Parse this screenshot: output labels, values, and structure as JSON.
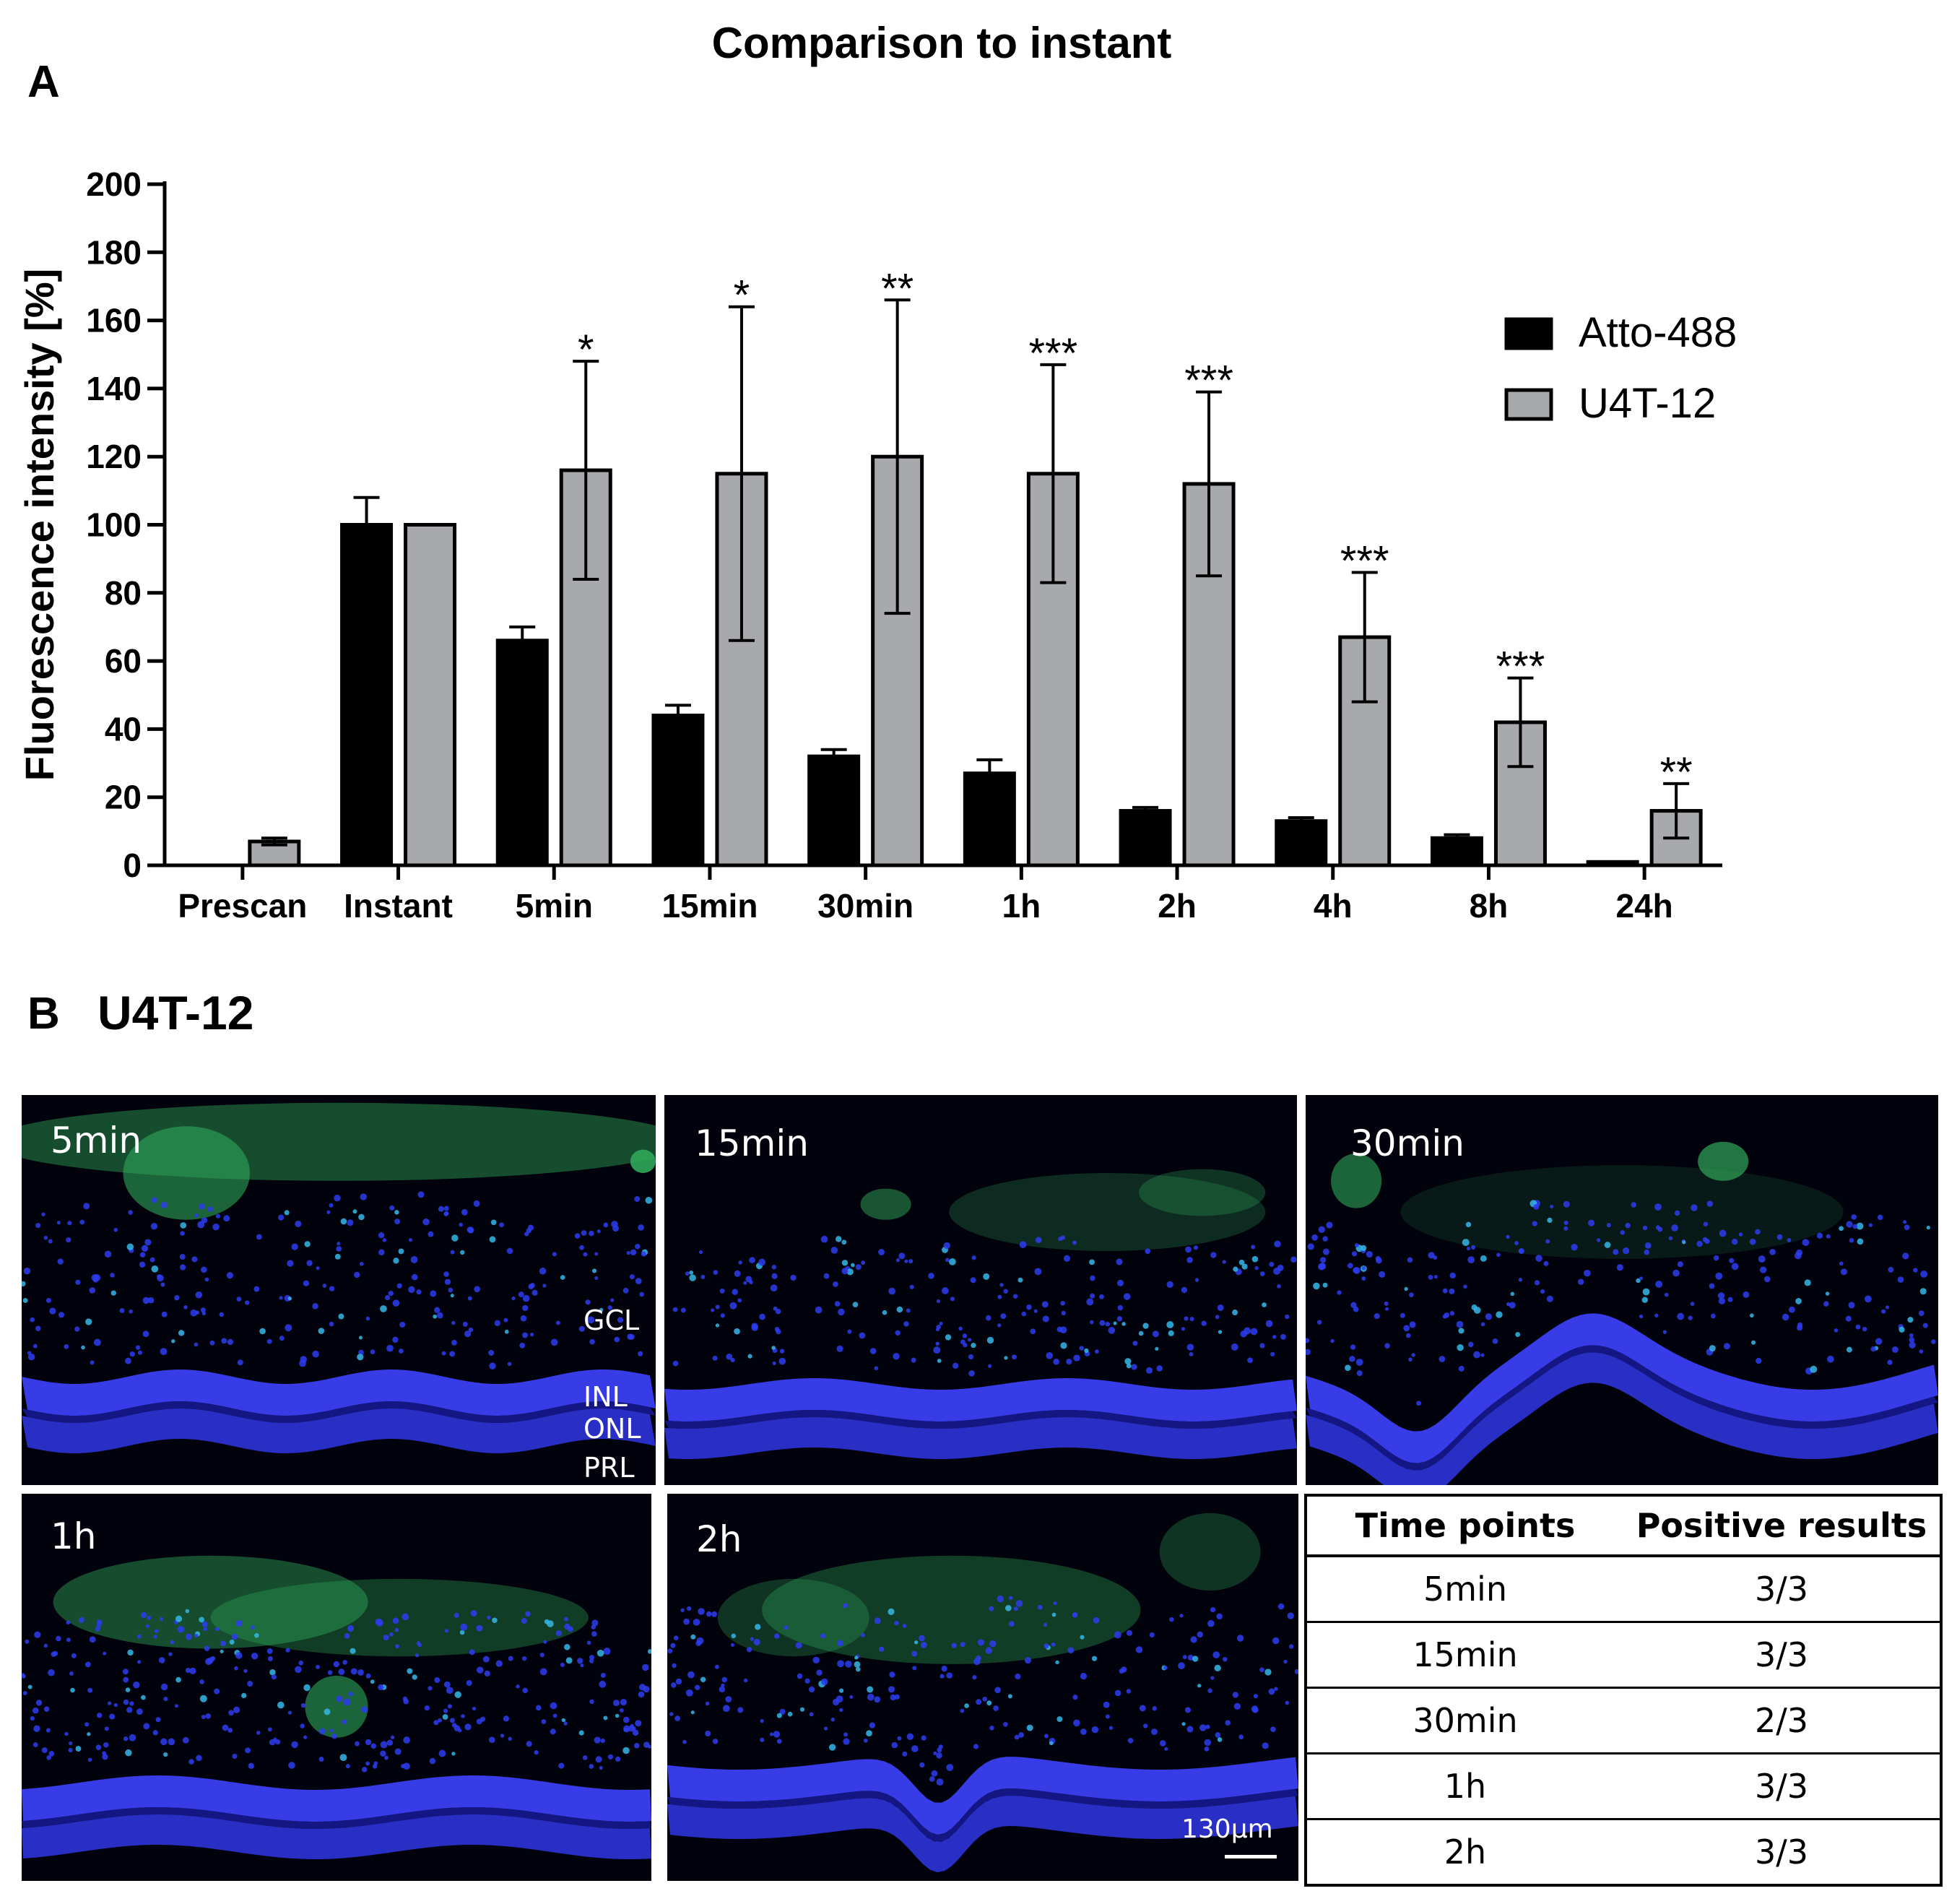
{
  "panel_a_label": "A",
  "panel_b_label": "B",
  "panel_b_title": "U4T-12",
  "chart_data": {
    "type": "bar",
    "title": "Comparison to instant",
    "xlabel": "",
    "ylabel": "Fluorescence intensity [%]",
    "ylim": [
      0,
      200
    ],
    "yticks": [
      "0",
      "20",
      "40",
      "60",
      "80",
      "100",
      "120",
      "140",
      "160",
      "180",
      "200"
    ],
    "grid": false,
    "legend_position": "top-right",
    "categories": [
      "Prescan",
      "Instant",
      "5min",
      "15min",
      "30min",
      "1h",
      "2h",
      "4h",
      "8h",
      "24h"
    ],
    "series": [
      {
        "name": "Atto-488",
        "color": "#000000",
        "values": [
          0,
          100,
          66,
          44,
          32,
          27,
          16,
          13,
          8,
          1
        ],
        "error": [
          0,
          8,
          4,
          3,
          2,
          4,
          1,
          1,
          1,
          0
        ]
      },
      {
        "name": "U4T-12",
        "color": "#a7a9ac",
        "values": [
          7,
          100,
          116,
          115,
          120,
          115,
          112,
          67,
          42,
          16
        ],
        "error": [
          1,
          0,
          32,
          49,
          46,
          32,
          27,
          19,
          13,
          8
        ]
      }
    ],
    "significance": [
      "",
      "",
      "*",
      "*",
      "**",
      "***",
      "***",
      "***",
      "***",
      "**"
    ]
  },
  "micrographs": [
    {
      "label": "5min"
    },
    {
      "label": "15min"
    },
    {
      "label": "30min"
    },
    {
      "label": "1h"
    },
    {
      "label": "2h"
    }
  ],
  "layer_labels": {
    "gcl": "GCL",
    "inl": "INL",
    "onl": "ONL",
    "prl": "PRL"
  },
  "scale_bar_label": "130µm",
  "table": {
    "headers": [
      "Time points",
      "Positive results"
    ],
    "rows": [
      [
        "5min",
        "3/3"
      ],
      [
        "15min",
        "3/3"
      ],
      [
        "30min",
        "2/3"
      ],
      [
        "1h",
        "3/3"
      ],
      [
        "2h",
        "3/3"
      ]
    ]
  }
}
